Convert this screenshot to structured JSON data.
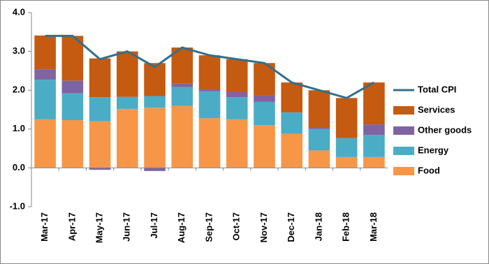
{
  "chart_data": {
    "type": "bar",
    "stacked": true,
    "categories": [
      "Mar-17",
      "Apr-17",
      "May-17",
      "Jun-17",
      "Jul-17",
      "Aug-17",
      "Sep-17",
      "Oct-17",
      "Nov-17",
      "Dec-17",
      "Jan-18",
      "Feb-18",
      "Mar-18"
    ],
    "series": [
      {
        "name": "Food",
        "color": "#f79646",
        "values": [
          1.25,
          1.23,
          1.2,
          1.52,
          1.55,
          1.6,
          1.28,
          1.25,
          1.1,
          0.88,
          0.45,
          0.28,
          0.28
        ]
      },
      {
        "name": "Energy",
        "color": "#4bacc6",
        "values": [
          1.02,
          0.69,
          0.62,
          0.31,
          0.3,
          0.48,
          0.69,
          0.57,
          0.6,
          0.55,
          0.55,
          0.49,
          0.57
        ]
      },
      {
        "name": "Other goods",
        "color": "#8064a2",
        "values": [
          0.27,
          0.33,
          -0.05,
          0,
          -0.08,
          0.09,
          0.06,
          0.13,
          0.17,
          0,
          0.05,
          0,
          0.27
        ]
      },
      {
        "name": "Services",
        "color": "#c55a11",
        "values": [
          0.87,
          1.15,
          1.0,
          1.17,
          0.85,
          0.93,
          0.87,
          0.85,
          0.83,
          0.77,
          0.95,
          1.03,
          1.08
        ]
      },
      {
        "name": "Total CPI",
        "type": "line",
        "color": "#31708a",
        "values": [
          3.4,
          3.4,
          2.8,
          3.0,
          2.6,
          3.1,
          2.9,
          2.8,
          2.7,
          2.2,
          2.0,
          1.8,
          2.2
        ]
      }
    ],
    "ylim": [
      -1,
      4
    ],
    "yticks": [
      {
        "value": -1,
        "label": "-1.0"
      },
      {
        "value": 0,
        "label": "0.0"
      },
      {
        "value": 1,
        "label": "1.0"
      },
      {
        "value": 2,
        "label": "2.0"
      },
      {
        "value": 3,
        "label": "3.0"
      },
      {
        "value": 4,
        "label": "4.0"
      }
    ],
    "legend": "right"
  }
}
